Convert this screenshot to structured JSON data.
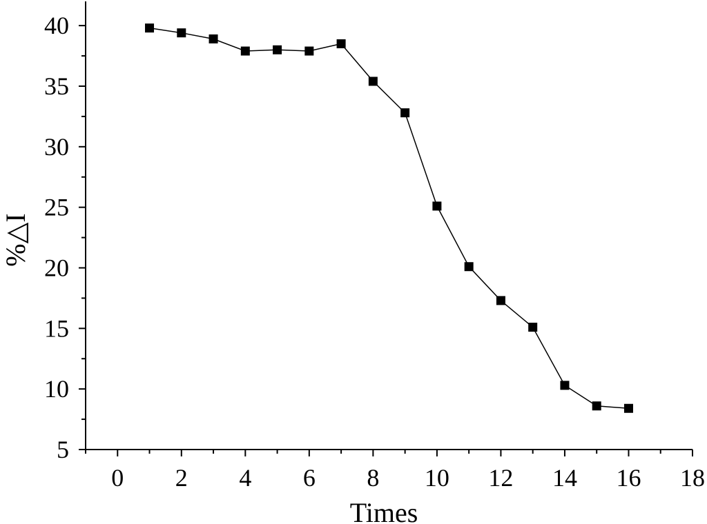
{
  "chart_data": {
    "type": "line",
    "title": "",
    "xlabel": "Times",
    "ylabel": "%△I",
    "xlim": [
      -1,
      18
    ],
    "ylim": [
      5,
      42
    ],
    "x_ticks": [
      "0",
      "2",
      "4",
      "6",
      "8",
      "10",
      "12",
      "14",
      "16",
      "18"
    ],
    "y_ticks": [
      "5",
      "10",
      "15",
      "20",
      "25",
      "30",
      "35",
      "40"
    ],
    "grid": false,
    "legend": "none",
    "marker": "square",
    "colors": {
      "line": "#000000",
      "marker": "#000000",
      "axis": "#000000"
    },
    "series": [
      {
        "x": [
          1,
          2,
          3,
          4,
          5,
          6,
          7,
          8,
          9,
          10,
          11,
          12,
          13,
          14,
          15,
          16
        ],
        "y": [
          39.8,
          39.4,
          38.9,
          37.9,
          38.0,
          37.9,
          38.5,
          35.4,
          32.8,
          25.1,
          20.1,
          17.3,
          15.1,
          10.3,
          8.6,
          8.4
        ]
      }
    ]
  }
}
